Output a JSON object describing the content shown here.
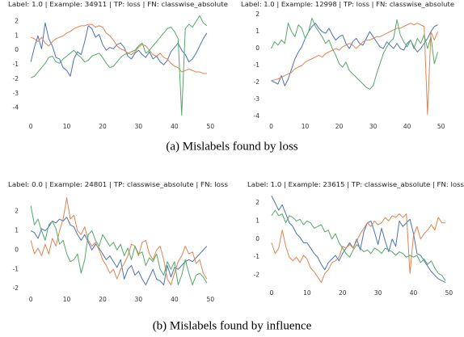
{
  "captions": [
    "(a) Mislabels found by loss",
    "(b) Mislabels found by influence"
  ],
  "chart_data": [
    {
      "type": "line",
      "title": "Label: 1.0 | Example: 34911 | TP: loss | FN: classwise_absolute",
      "x": [
        0,
        1,
        2,
        3,
        4,
        5,
        6,
        7,
        8,
        9,
        10,
        11,
        12,
        13,
        14,
        15,
        16,
        17,
        18,
        19,
        20,
        21,
        22,
        23,
        24,
        25,
        26,
        27,
        28,
        29,
        30,
        31,
        32,
        33,
        34,
        35,
        36,
        37,
        38,
        39,
        40,
        41,
        42,
        43,
        44,
        45,
        46,
        47,
        48,
        49
      ],
      "xlim": [
        -2.5,
        51.5
      ],
      "xticks": [
        0,
        10,
        20,
        30,
        40,
        50
      ],
      "ylim": [
        -4.8,
        2.7
      ],
      "yticks": [
        -4,
        -3,
        -2,
        -1,
        0,
        1,
        2
      ],
      "grid": false,
      "series": [
        {
          "color": "#4c72b0",
          "values": [
            -0.8,
            0.2,
            1.0,
            0.1,
            1.9,
            0.8,
            0.3,
            -0.5,
            -0.6,
            -1.2,
            -1.4,
            -1.8,
            -0.6,
            -0.1,
            -0.3,
            0.6,
            1.7,
            1.5,
            0.9,
            1.1,
            0.4,
            0.0,
            0.2,
            0.1,
            0.4,
            0.5,
            0.2,
            -0.4,
            -0.6,
            -0.2,
            0.0,
            -0.3,
            -0.5,
            -0.1,
            -0.6,
            -0.4,
            -0.8,
            -1.0,
            -0.7,
            -0.1,
            0.2,
            0.5,
            0.0,
            -0.3,
            -0.8,
            -0.6,
            -0.2,
            0.3,
            0.8,
            1.2
          ]
        },
        {
          "color": "#dd8452",
          "values": [
            0.9,
            0.8,
            0.6,
            0.9,
            0.5,
            0.3,
            0.6,
            0.8,
            0.9,
            1.0,
            1.2,
            1.3,
            1.5,
            1.6,
            1.7,
            1.7,
            1.8,
            1.8,
            1.6,
            1.7,
            1.6,
            1.2,
            1.0,
            0.7,
            0.3,
            0.1,
            0.0,
            -0.2,
            -0.3,
            -0.1,
            0.2,
            0.4,
            0.3,
            0.0,
            -0.3,
            -0.4,
            -0.2,
            -0.5,
            -0.6,
            -0.9,
            -1.1,
            -1.2,
            -1.5,
            -1.4,
            -1.3,
            -1.4,
            -1.5,
            -1.5,
            -1.6,
            -1.6
          ]
        },
        {
          "color": "#55a868",
          "values": [
            -1.9,
            -1.8,
            -1.5,
            -1.2,
            -0.9,
            -0.5,
            -0.4,
            -0.8,
            -0.9,
            -0.6,
            -0.4,
            -0.2,
            0.0,
            -0.3,
            -0.5,
            -0.8,
            -0.7,
            -0.4,
            -0.3,
            -0.2,
            -0.5,
            -0.9,
            -1.2,
            -1.1,
            -0.8,
            -0.5,
            -0.3,
            -0.2,
            -0.1,
            0.0,
            0.3,
            0.5,
            -0.2,
            0.0,
            0.3,
            0.6,
            0.9,
            1.2,
            1.5,
            1.6,
            1.3,
            0.8,
            -4.5,
            1.5,
            1.8,
            1.6,
            2.0,
            2.4,
            1.9,
            1.7
          ]
        }
      ]
    },
    {
      "type": "line",
      "title": "Label: 1.0 | Example: 12998 | TP: loss | FN: classwise_absolute",
      "x": [
        0,
        1,
        2,
        3,
        4,
        5,
        6,
        7,
        8,
        9,
        10,
        11,
        12,
        13,
        14,
        15,
        16,
        17,
        18,
        19,
        20,
        21,
        22,
        23,
        24,
        25,
        26,
        27,
        28,
        29,
        30,
        31,
        32,
        33,
        34,
        35,
        36,
        37,
        38,
        39,
        40,
        41,
        42,
        43,
        44,
        45,
        46,
        47,
        48,
        49
      ],
      "xlim": [
        -2.5,
        51.5
      ],
      "xticks": [
        0,
        10,
        20,
        30,
        40,
        50
      ],
      "ylim": [
        -4.2,
        2.2
      ],
      "yticks": [
        -4,
        -3,
        -2,
        -1,
        0,
        1,
        2
      ],
      "grid": false,
      "series": [
        {
          "color": "#4c72b0",
          "values": [
            -1.9,
            -2.0,
            -2.1,
            -1.6,
            -2.2,
            -1.8,
            -1.2,
            -0.6,
            -0.2,
            0.1,
            0.6,
            1.0,
            1.3,
            1.5,
            1.2,
            1.0,
            0.9,
            1.2,
            0.8,
            0.5,
            0.7,
            0.8,
            0.3,
            0.0,
            0.4,
            0.6,
            0.3,
            0.2,
            0.6,
            1.0,
            0.7,
            0.4,
            0.1,
            0.0,
            0.4,
            0.2,
            0.0,
            0.3,
            0.0,
            -0.1,
            0.3,
            0.5,
            0.1,
            -0.2,
            0.0,
            0.3,
            0.6,
            1.0,
            1.3,
            1.4
          ]
        },
        {
          "color": "#dd8452",
          "values": [
            -1.9,
            -1.85,
            -1.8,
            -1.7,
            -1.6,
            -1.5,
            -1.4,
            -1.2,
            -1.1,
            -1.0,
            -0.8,
            -0.7,
            -0.6,
            -0.5,
            -0.4,
            -0.5,
            -0.3,
            -0.2,
            -0.1,
            0.0,
            -0.1,
            0.1,
            0.2,
            0.3,
            0.2,
            0.0,
            0.2,
            0.4,
            0.5,
            0.5,
            0.6,
            0.7,
            0.7,
            0.8,
            0.9,
            1.0,
            1.1,
            1.2,
            1.2,
            1.3,
            1.4,
            1.5,
            1.4,
            1.5,
            1.4,
            1.3,
            -3.9,
            1.0,
            0.5,
            1.0
          ]
        },
        {
          "color": "#55a868",
          "values": [
            0.0,
            0.4,
            0.2,
            0.5,
            0.3,
            1.5,
            1.0,
            0.7,
            1.4,
            1.2,
            0.6,
            1.0,
            1.8,
            1.3,
            1.0,
            0.7,
            0.3,
            0.5,
            0.0,
            -0.4,
            -0.9,
            -1.1,
            -0.8,
            -1.3,
            -1.5,
            -1.7,
            -1.9,
            -2.1,
            -2.3,
            -2.4,
            -2.2,
            -1.5,
            -0.9,
            -0.3,
            0.1,
            0.4,
            0.6,
            1.7,
            0.8,
            0.4,
            0.1,
            0.5,
            0.0,
            0.6,
            0.3,
            0.8,
            0.0,
            0.7,
            -0.9,
            -0.2
          ]
        }
      ]
    },
    {
      "type": "line",
      "title": "Label: 0.0 | Example: 24801 | TP: classwise_absolute | FN: loss",
      "x": [
        0,
        1,
        2,
        3,
        4,
        5,
        6,
        7,
        8,
        9,
        10,
        11,
        12,
        13,
        14,
        15,
        16,
        17,
        18,
        19,
        20,
        21,
        22,
        23,
        24,
        25,
        26,
        27,
        28,
        29,
        30,
        31,
        32,
        33,
        34,
        35,
        36,
        37,
        38,
        39,
        40,
        41,
        42,
        43,
        44,
        45,
        46,
        47,
        48,
        49
      ],
      "xlim": [
        -2.5,
        51.5
      ],
      "xticks": [
        0,
        10,
        20,
        30,
        40,
        50
      ],
      "ylim": [
        -2.2,
        2.9
      ],
      "yticks": [
        -2,
        -1,
        0,
        1,
        2
      ],
      "grid": false,
      "series": [
        {
          "color": "#4c72b0",
          "values": [
            1.0,
            0.9,
            0.6,
            1.1,
            1.0,
            1.2,
            1.5,
            1.4,
            1.6,
            1.5,
            1.7,
            1.3,
            1.2,
            0.8,
            0.5,
            0.8,
            0.4,
            0.0,
            0.3,
            0.1,
            -0.2,
            -0.5,
            -0.3,
            -0.6,
            -0.9,
            -0.5,
            -1.5,
            -1.0,
            -0.8,
            -1.3,
            -1.1,
            -1.5,
            -1.8,
            -1.4,
            -1.0,
            -1.5,
            -1.6,
            -1.8,
            -0.8,
            -1.4,
            -0.9,
            -1.0,
            -0.8,
            -0.6,
            -0.5,
            -0.6,
            -0.4,
            -0.2,
            0.0,
            0.2
          ]
        },
        {
          "color": "#dd8452",
          "values": [
            0.5,
            -0.2,
            0.1,
            -0.3,
            0.3,
            -0.2,
            0.6,
            0.2,
            1.0,
            1.6,
            2.7,
            1.6,
            1.8,
            1.0,
            0.8,
            1.2,
            0.5,
            0.2,
            0.4,
            0.0,
            -0.5,
            -0.8,
            -1.2,
            -1.0,
            -1.5,
            -1.0,
            -0.7,
            -0.3,
            0.3,
            0.2,
            -0.3,
            0.4,
            0.5,
            -0.2,
            -0.5,
            0.0,
            0.2,
            -0.5,
            -1.5,
            -1.8,
            -1.2,
            -0.6,
            -0.3,
            0.2,
            -0.2,
            -0.1,
            -0.7,
            -0.5,
            -1.2,
            -1.5
          ]
        },
        {
          "color": "#55a868",
          "values": [
            2.3,
            1.3,
            1.6,
            1.0,
            0.5,
            1.3,
            1.5,
            1.1,
            0.3,
            0.5,
            -0.2,
            -0.6,
            -0.5,
            -0.2,
            -1.2,
            -0.5,
            0.8,
            1.0,
            0.5,
            0.2,
            0.8,
            0.5,
            0.2,
            0.4,
            0.0,
            0.3,
            -0.3,
            0.1,
            -0.5,
            0.2,
            -0.2,
            -0.1,
            -0.8,
            -0.4,
            -0.6,
            -0.2,
            -1.0,
            -1.3,
            -0.6,
            -1.0,
            -0.6,
            -1.8,
            -1.3,
            -0.5,
            -1.2,
            -1.8,
            -1.3,
            -1.2,
            -1.4,
            -1.7
          ]
        }
      ]
    },
    {
      "type": "line",
      "title": "Label: 1.0 | Example: 23615 | TP: classwise_absolute | FN: loss",
      "x": [
        0,
        1,
        2,
        3,
        4,
        5,
        6,
        7,
        8,
        9,
        10,
        11,
        12,
        13,
        14,
        15,
        16,
        17,
        18,
        19,
        20,
        21,
        22,
        23,
        24,
        25,
        26,
        27,
        28,
        29,
        30,
        31,
        32,
        33,
        34,
        35,
        36,
        37,
        38,
        39,
        40,
        41,
        42,
        43,
        44,
        45,
        46,
        47,
        48,
        49
      ],
      "xlim": [
        -2.5,
        51.5
      ],
      "xticks": [
        0,
        10,
        20,
        30,
        40,
        50
      ],
      "ylim": [
        -2.6,
        2.5
      ],
      "yticks": [
        -2,
        -1,
        0,
        1,
        2
      ],
      "grid": false,
      "series": [
        {
          "color": "#4c72b0",
          "values": [
            2.4,
            2.0,
            1.6,
            1.9,
            1.4,
            0.9,
            0.7,
            0.3,
            0.1,
            -0.2,
            -0.2,
            -0.5,
            -0.8,
            -1.0,
            -1.4,
            -1.7,
            -1.3,
            -1.1,
            -0.9,
            -1.2,
            -0.8,
            -0.5,
            -0.2,
            -0.5,
            0.0,
            -0.6,
            0.4,
            0.9,
            1.0,
            0.4,
            -0.3,
            0.6,
            -0.1,
            -0.7,
            0.0,
            -0.4,
            1.0,
            0.7,
            0.9,
            1.1,
            0.3,
            -0.8,
            -0.9,
            -1.2,
            -1.5,
            -1.8,
            -2.0,
            -2.2,
            -2.3,
            -2.4
          ]
        },
        {
          "color": "#dd8452",
          "values": [
            -0.2,
            -0.8,
            -0.5,
            0.5,
            -0.4,
            -1.0,
            -1.2,
            -1.0,
            -1.3,
            -0.9,
            -1.1,
            -1.6,
            -1.8,
            -2.1,
            -2.4,
            -1.9,
            -1.7,
            -1.3,
            -1.2,
            -1.0,
            -0.4,
            -0.5,
            -0.3,
            -0.5,
            -0.1,
            0.3,
            0.6,
            0.9,
            0.7,
            1.0,
            0.8,
            0.9,
            1.2,
            1.0,
            1.3,
            1.2,
            1.4,
            1.2,
            1.4,
            -1.9,
            0.2,
            0.7,
            0.0,
            0.3,
            0.5,
            0.8,
            0.5,
            1.2,
            0.9,
            0.9
          ]
        },
        {
          "color": "#55a868",
          "values": [
            1.3,
            1.6,
            1.3,
            1.4,
            0.9,
            1.3,
            1.2,
            1.0,
            1.1,
            0.8,
            1.0,
            0.9,
            0.6,
            0.7,
            0.8,
            0.4,
            0.5,
            0.0,
            0.3,
            -0.2,
            -0.5,
            -0.8,
            -1.0,
            -0.6,
            -0.3,
            -0.5,
            -0.7,
            -0.6,
            -0.8,
            -0.5,
            -0.6,
            -0.8,
            -0.5,
            -0.6,
            -0.7,
            -0.9,
            -0.7,
            -0.8,
            -1.0,
            -0.9,
            -1.0,
            -0.9,
            -1.3,
            -1.1,
            -1.4,
            -1.2,
            -1.6,
            -1.9,
            -2.0,
            -2.3
          ]
        }
      ]
    }
  ]
}
